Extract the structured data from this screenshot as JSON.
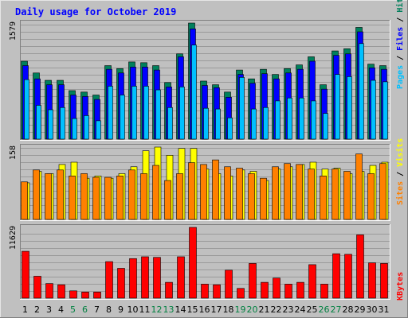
{
  "chart_data": {
    "type": "bar",
    "title": "Daily usage for October 2019",
    "categories": [
      "1",
      "2",
      "3",
      "4",
      "5",
      "6",
      "7",
      "8",
      "9",
      "10",
      "11",
      "12",
      "13",
      "14",
      "15",
      "16",
      "17",
      "18",
      "19",
      "20",
      "21",
      "22",
      "23",
      "24",
      "25",
      "26",
      "27",
      "28",
      "29",
      "30",
      "31"
    ],
    "weekend_days": [
      "5",
      "6",
      "12",
      "13",
      "19",
      "20",
      "26",
      "27"
    ],
    "panels": [
      {
        "id": "hits-files-pages",
        "ymax_label": "1579",
        "ylim": [
          0,
          1579
        ],
        "legend_parts": [
          "Pages",
          "Files",
          "Hits"
        ],
        "series": [
          {
            "name": "Hits",
            "color": "#00805c",
            "values": [
              1060,
              900,
              800,
              800,
              660,
              640,
              600,
              1000,
              960,
              1050,
              1040,
              1000,
              770,
              1160,
              1579,
              790,
              740,
              640,
              940,
              820,
              950,
              880,
              960,
              1010,
              1120,
              740,
              1200,
              1230,
              1520,
              1020,
              1000
            ]
          },
          {
            "name": "Files",
            "color": "#0000ff",
            "values": [
              1000,
              820,
              740,
              740,
              600,
              580,
              540,
              950,
              900,
              980,
              980,
              940,
              710,
              1120,
              1500,
              730,
              700,
              570,
              880,
              760,
              890,
              820,
              900,
              950,
              1060,
              680,
              1140,
              1160,
              1460,
              970,
              950
            ]
          },
          {
            "name": "Pages",
            "color": "#00c0ff",
            "values": [
              810,
              460,
              400,
              430,
              280,
              320,
              250,
              720,
              600,
              720,
              720,
              670,
              430,
              710,
              1280,
              420,
              410,
              290,
              840,
              410,
              430,
              520,
              560,
              560,
              520,
              350,
              880,
              850,
              1300,
              800,
              780
            ]
          }
        ]
      },
      {
        "id": "visits-sites",
        "ymax_label": "158",
        "ylim": [
          0,
          158
        ],
        "legend_parts": [
          "Sites",
          "Visits"
        ],
        "series": [
          {
            "name": "Visits",
            "color": "#ffff00",
            "values": [
              80,
              105,
              100,
              120,
              125,
              90,
              95,
              90,
              100,
              115,
              150,
              158,
              140,
              155,
              155,
              110,
              100,
              95,
              108,
              105,
              85,
              110,
              115,
              120,
              125,
              110,
              112,
              100,
              105,
              118,
              125
            ]
          },
          {
            "name": "Sites",
            "color": "#ff8000",
            "values": [
              82,
              108,
              100,
              108,
              95,
              100,
              92,
              92,
              95,
              108,
              100,
              118,
              85,
              100,
              124,
              120,
              130,
              115,
              112,
              100,
              90,
              115,
              122,
              120,
              110,
              95,
              110,
              105,
              143,
              100,
              122
            ]
          }
        ]
      },
      {
        "id": "kbytes",
        "ymax_label": "11629",
        "ylim": [
          0,
          11629
        ],
        "legend_parts": [
          "KBytes"
        ],
        "series": [
          {
            "name": "KBytes",
            "color": "#ff0000",
            "values": [
              7700,
              3600,
              2400,
              2200,
              1200,
              1000,
              1000,
              6000,
              4900,
              6500,
              6800,
              6700,
              2600,
              6800,
              11629,
              2300,
              2200,
              4600,
              1600,
              5700,
              2600,
              3300,
              2300,
              2600,
              5500,
              2300,
              7300,
              7200,
              10400,
              5800,
              5700
            ]
          }
        ]
      }
    ]
  },
  "colors": {
    "background": "#c0c0c0",
    "frame": "#808080",
    "title": "#0000ff",
    "weekday_label": "#000000",
    "weekend_label": "#008040",
    "legend_separator": "#000000"
  }
}
